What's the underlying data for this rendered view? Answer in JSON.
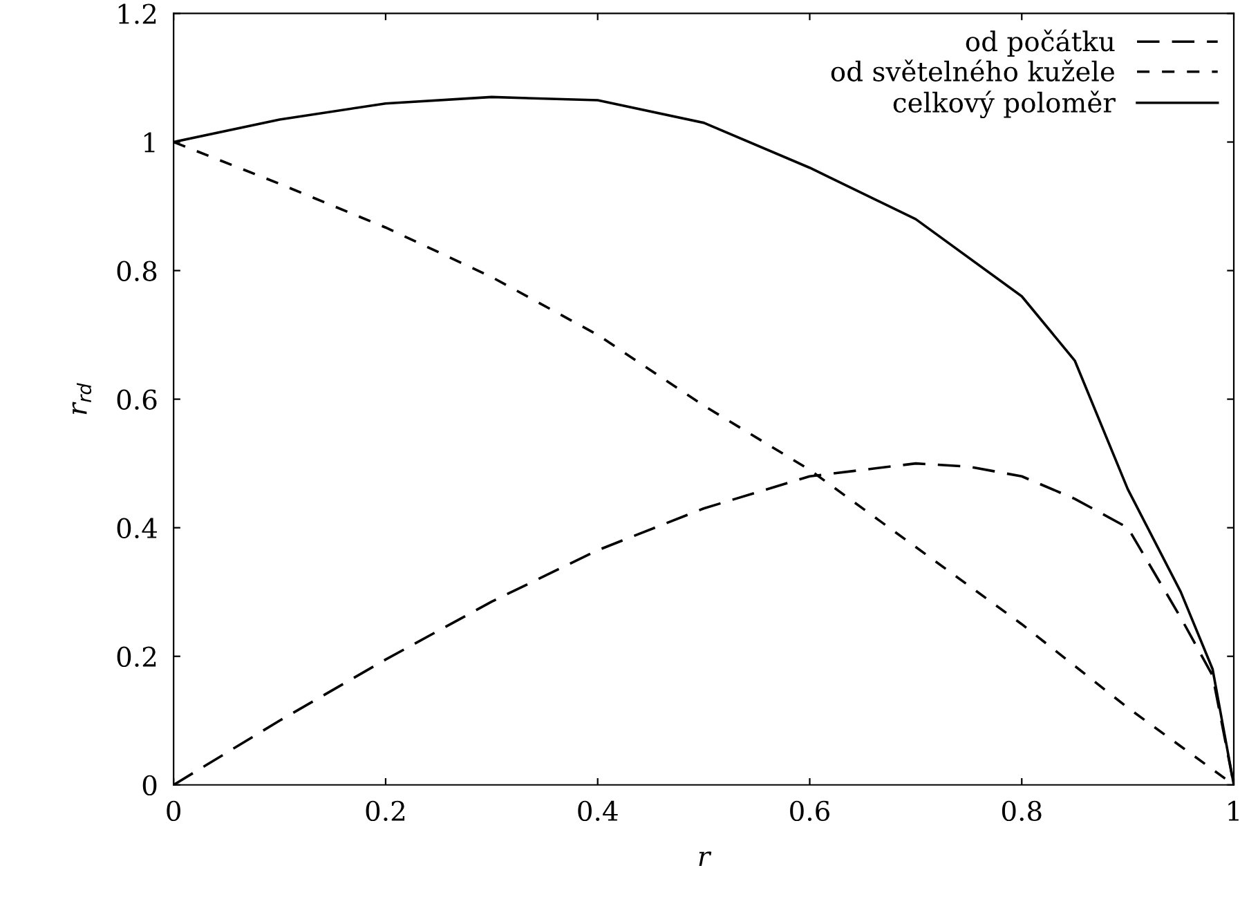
{
  "chart_data": {
    "type": "line",
    "xlabel": "r",
    "ylabel": "r$_{rd}$",
    "xlim": [
      0,
      1
    ],
    "ylim": [
      0,
      1.2
    ],
    "xticks": [
      0,
      0.2,
      0.4,
      0.6,
      0.8,
      1
    ],
    "yticks": [
      0,
      0.2,
      0.4,
      0.6,
      0.8,
      1,
      1.2
    ],
    "grid": false,
    "legend": "top right",
    "marker": "none",
    "series": [
      {
        "name": "od počátku",
        "color": "#000000",
        "line_style": "dashed",
        "x": [
          0,
          0.1,
          0.2,
          0.3,
          0.4,
          0.5,
          0.6,
          0.7,
          0.75,
          0.8,
          0.85,
          0.9,
          0.95,
          0.98,
          1
        ],
        "values": [
          0,
          0.1,
          0.195,
          0.285,
          0.365,
          0.43,
          0.48,
          0.5,
          0.495,
          0.48,
          0.445,
          0.4,
          0.26,
          0.17,
          0
        ]
      },
      {
        "name": "od světelného kužele",
        "color": "#000000",
        "line_style": "dashed",
        "x": [
          0,
          0.1,
          0.2,
          0.3,
          0.4,
          0.5,
          0.6,
          0.7,
          0.8,
          0.9,
          0.95,
          1
        ],
        "values": [
          1,
          0.935,
          0.867,
          0.79,
          0.7,
          0.59,
          0.49,
          0.37,
          0.25,
          0.12,
          0.06,
          0
        ]
      },
      {
        "name": "celkový poloměr",
        "color": "#000000",
        "line_style": "solid",
        "x": [
          0,
          0.1,
          0.2,
          0.3,
          0.4,
          0.5,
          0.6,
          0.7,
          0.8,
          0.85,
          0.9,
          0.95,
          0.98,
          1
        ],
        "values": [
          1,
          1.035,
          1.06,
          1.07,
          1.065,
          1.03,
          0.96,
          0.88,
          0.76,
          0.66,
          0.46,
          0.3,
          0.18,
          0
        ]
      }
    ]
  }
}
